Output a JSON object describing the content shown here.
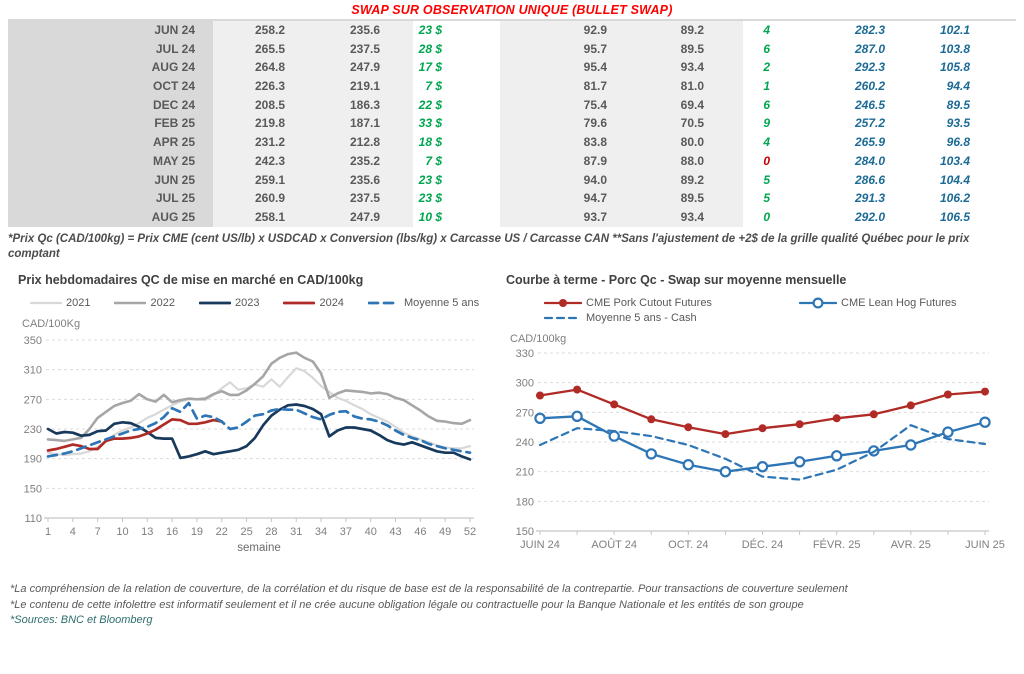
{
  "report": {
    "table_title": "SWAP SUR OBSERVATION UNIQUE (BULLET SWAP)",
    "table": {
      "rows": [
        {
          "label": "JUN 24",
          "values": [
            "258.2",
            "235.6",
            "23 $",
            "92.9",
            "89.2",
            "4",
            "282.3",
            "102.1"
          ],
          "flag_color": "green"
        },
        {
          "label": "JUL 24",
          "values": [
            "265.5",
            "237.5",
            "28 $",
            "95.7",
            "89.5",
            "6",
            "287.0",
            "103.8"
          ],
          "flag_color": "green"
        },
        {
          "label": "AUG 24",
          "values": [
            "264.8",
            "247.9",
            "17 $",
            "95.4",
            "93.4",
            "2",
            "292.3",
            "105.8"
          ],
          "flag_color": "green"
        },
        {
          "label": "OCT 24",
          "values": [
            "226.3",
            "219.1",
            "7 $",
            "81.7",
            "81.0",
            "1",
            "260.2",
            "94.4"
          ],
          "flag_color": "green"
        },
        {
          "label": "DEC 24",
          "values": [
            "208.5",
            "186.3",
            "22 $",
            "75.4",
            "69.4",
            "6",
            "246.5",
            "89.5"
          ],
          "flag_color": "green"
        },
        {
          "label": "FEB 25",
          "values": [
            "219.8",
            "187.1",
            "33 $",
            "79.6",
            "70.5",
            "9",
            "257.2",
            "93.5"
          ],
          "flag_color": "green"
        },
        {
          "label": "APR 25",
          "values": [
            "231.2",
            "212.8",
            "18 $",
            "83.8",
            "80.0",
            "4",
            "265.9",
            "96.8"
          ],
          "flag_color": "green"
        },
        {
          "label": "MAY 25",
          "values": [
            "242.3",
            "235.2",
            "7 $",
            "87.9",
            "88.0",
            "0",
            "284.0",
            "103.4"
          ],
          "flag_color": "red"
        },
        {
          "label": "JUN 25",
          "values": [
            "259.1",
            "235.6",
            "23 $",
            "94.0",
            "89.2",
            "5",
            "286.6",
            "104.4"
          ],
          "flag_color": "green"
        },
        {
          "label": "JUL 25",
          "values": [
            "260.9",
            "237.5",
            "23 $",
            "94.7",
            "89.5",
            "5",
            "291.3",
            "106.2"
          ],
          "flag_color": "green"
        },
        {
          "label": "AUG 25",
          "values": [
            "258.1",
            "247.9",
            "10 $",
            "93.7",
            "93.4",
            "0",
            "292.0",
            "106.5"
          ],
          "flag_color": "green"
        }
      ]
    },
    "table_footnote": "*Prix Qc (CAD/100kg) = Prix CME (cent US/lb) x USDCAD x Conversion (lbs/kg) x Carcasse US / Carcasse CAN **Sans l'ajustement de +2$ de la grille qualité Québec pour le prix comptant",
    "footnotes": [
      "*La compréhension de la relation de couverture, de la corrélation et du risque de base est de la responsabilité de la contrepartie. Pour transactions de couverture seulement",
      "*Le contenu de cette infolettre est informatif seulement et il ne crée aucune obligation légale ou contractuelle pour la Banque Nationale et les entités de son groupe"
    ],
    "sources": "*Sources: BNC et Bloomberg"
  },
  "chart_data": [
    {
      "type": "line",
      "title": "Prix hebdomadaires QC de mise en marché en CAD/100kg",
      "ylabel": "CAD/100Kg",
      "xlabel": "semaine",
      "xlim": [
        1,
        52
      ],
      "ylim": [
        110,
        350
      ],
      "yticks": [
        110,
        150,
        190,
        230,
        270,
        310,
        350
      ],
      "xticks": [
        {
          "p": 1,
          "l": "1"
        },
        {
          "p": 4,
          "l": "4"
        },
        {
          "p": 7,
          "l": "7"
        },
        {
          "p": 10,
          "l": "10"
        },
        {
          "p": 13,
          "l": "13"
        },
        {
          "p": 16,
          "l": "16"
        },
        {
          "p": 19,
          "l": "19"
        },
        {
          "p": 22,
          "l": "22"
        },
        {
          "p": 25,
          "l": "25"
        },
        {
          "p": 28,
          "l": "28"
        },
        {
          "p": 31,
          "l": "31"
        },
        {
          "p": 34,
          "l": "34"
        },
        {
          "p": 37,
          "l": "37"
        },
        {
          "p": 40,
          "l": "40"
        },
        {
          "p": 43,
          "l": "43"
        },
        {
          "p": 46,
          "l": "46"
        },
        {
          "p": 49,
          "l": "49"
        },
        {
          "p": 52,
          "l": "52"
        }
      ],
      "grid": true,
      "legend_position": "top",
      "series": [
        {
          "name": "2021",
          "color": "#d8d8d8",
          "width": 2.2,
          "x_start": 1,
          "values": [
            198,
            196,
            195,
            196,
            197,
            200,
            206,
            213,
            222,
            228,
            232,
            238,
            245,
            250,
            256,
            262,
            267,
            270,
            270,
            269,
            276,
            285,
            293,
            283,
            285,
            290,
            287,
            297,
            287,
            300,
            312,
            308,
            299,
            288,
            280,
            272,
            268,
            262,
            257,
            250,
            245,
            240,
            233,
            225,
            220,
            216,
            212,
            208,
            205,
            204,
            204,
            207
          ]
        },
        {
          "name": "2022",
          "color": "#a6a6a6",
          "width": 2.6,
          "x_start": 1,
          "values": [
            216,
            215,
            214,
            216,
            218,
            230,
            245,
            253,
            261,
            265,
            268,
            277,
            270,
            267,
            276,
            266,
            269,
            271,
            270,
            271,
            277,
            281,
            276,
            276,
            282,
            291,
            301,
            318,
            326,
            331,
            333,
            326,
            321,
            305,
            272,
            278,
            282,
            281,
            280,
            278,
            279,
            277,
            272,
            269,
            262,
            255,
            247,
            241,
            240,
            238,
            237,
            242
          ]
        },
        {
          "name": "2023",
          "color": "#17395c",
          "width": 2.7,
          "x_start": 1,
          "values": [
            230,
            224,
            226,
            225,
            221,
            222,
            227,
            228,
            237,
            239,
            238,
            233,
            226,
            218,
            217,
            217,
            191,
            193,
            196,
            200,
            196,
            198,
            200,
            202,
            207,
            218,
            235,
            248,
            256,
            262,
            263,
            261,
            257,
            250,
            220,
            228,
            232,
            232,
            230,
            228,
            222,
            215,
            211,
            209,
            212,
            208,
            204,
            200,
            198,
            198,
            193,
            189
          ]
        },
        {
          "name": "2024",
          "color": "#b02a26",
          "width": 2.7,
          "x_start": 1,
          "values": [
            201,
            203,
            206,
            209,
            207,
            203,
            203,
            214,
            217,
            217,
            218,
            220,
            224,
            229,
            236,
            243,
            242,
            237,
            237,
            239,
            242,
            240
          ]
        },
        {
          "name": "Moyenne 5 ans",
          "color": "#2e75b6",
          "width": 2.7,
          "dash": "9 6",
          "x_start": 1,
          "values": [
            193,
            195,
            197,
            200,
            204,
            208,
            212,
            216,
            220,
            224,
            228,
            230,
            233,
            238,
            246,
            258,
            253,
            265,
            244,
            248,
            246,
            240,
            230,
            232,
            240,
            248,
            250,
            255,
            257,
            256,
            256,
            251,
            246,
            243,
            249,
            253,
            254,
            247,
            244,
            243,
            240,
            235,
            228,
            222,
            218,
            215,
            210,
            207,
            204,
            202,
            200,
            198
          ]
        }
      ]
    },
    {
      "type": "line",
      "title": "Courbe à terme - Porc Qc - Swap sur moyenne mensuelle",
      "ylabel": "CAD/100kg",
      "xlabel": "",
      "xlim": [
        0,
        12
      ],
      "ylim": [
        150,
        330
      ],
      "yticks": [
        150,
        180,
        210,
        240,
        270,
        300,
        330
      ],
      "xticks": [
        {
          "p": 0,
          "l": "JUIN 24"
        },
        {
          "p": 1,
          "l": ""
        },
        {
          "p": 2,
          "l": "AOÛT 24"
        },
        {
          "p": 3,
          "l": ""
        },
        {
          "p": 4,
          "l": "OCT. 24"
        },
        {
          "p": 5,
          "l": ""
        },
        {
          "p": 6,
          "l": "DÉC. 24"
        },
        {
          "p": 7,
          "l": ""
        },
        {
          "p": 8,
          "l": "FÉVR. 25"
        },
        {
          "p": 9,
          "l": ""
        },
        {
          "p": 10,
          "l": "AVR. 25"
        },
        {
          "p": 11,
          "l": ""
        },
        {
          "p": 12,
          "l": "JUIN 25"
        }
      ],
      "grid": true,
      "legend_position": "top",
      "series": [
        {
          "name": "CME Pork Cutout Futures",
          "color": "#b02a26",
          "width": 2.3,
          "marker": "filled",
          "x_start": 0,
          "values": [
            287,
            293,
            278,
            263,
            255,
            248,
            254,
            258,
            264,
            268,
            277,
            288,
            291
          ]
        },
        {
          "name": "CME Lean Hog Futures",
          "color": "#2e75b6",
          "width": 2.3,
          "marker": "open",
          "x_start": 0,
          "values": [
            264,
            266,
            246,
            228,
            217,
            210,
            215,
            220,
            226,
            231,
            237,
            250,
            260
          ]
        },
        {
          "name": "Moyenne 5 ans - Cash",
          "color": "#2e75b6",
          "width": 2.2,
          "dash": "7 5",
          "x_start": 0,
          "values": [
            237,
            254,
            251,
            246,
            237,
            223,
            205,
            202,
            212,
            230,
            257,
            243,
            238
          ]
        }
      ]
    }
  ]
}
